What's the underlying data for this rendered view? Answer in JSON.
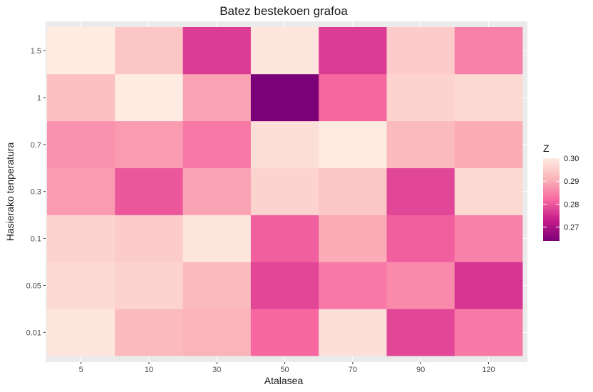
{
  "chart_data": {
    "type": "heatmap",
    "title": "Batez bestekoen grafoa",
    "xlabel": "Atalasea",
    "ylabel": "Hasierako tenperatura",
    "x_categories": [
      "5",
      "10",
      "30",
      "50",
      "70",
      "90",
      "120"
    ],
    "y_categories": [
      "0.01",
      "0.05",
      "0.1",
      "0.3",
      "0.7",
      "1",
      "1.5"
    ],
    "values": [
      [
        0.299,
        0.292,
        0.291,
        0.282,
        0.298,
        0.278,
        0.284
      ],
      [
        0.297,
        0.296,
        0.292,
        0.278,
        0.284,
        0.286,
        0.276
      ],
      [
        0.296,
        0.295,
        0.299,
        0.281,
        0.29,
        0.281,
        0.285
      ],
      [
        0.288,
        0.28,
        0.289,
        0.296,
        0.294,
        0.278,
        0.297
      ],
      [
        0.287,
        0.288,
        0.284,
        0.298,
        0.3,
        0.292,
        0.29
      ],
      [
        0.293,
        0.3,
        0.289,
        0.264,
        0.282,
        0.296,
        0.297
      ],
      [
        0.3,
        0.294,
        0.277,
        0.299,
        0.277,
        0.295,
        0.285
      ]
    ],
    "zlim": [
      0.264,
      0.3
    ],
    "legend": {
      "title": "Z",
      "position": "right",
      "ticks": [
        0.3,
        0.29,
        0.28,
        0.27
      ],
      "tick_labels": [
        "0.30",
        "0.29",
        "0.28",
        "0.27"
      ]
    },
    "colors": {
      "low": "#7A0177",
      "mid1": "#C51B8A",
      "mid2": "#F768A1",
      "mid3": "#FBB4B9",
      "high": "#FEEBE2",
      "panel_background": "#EBEBEB",
      "grid": "#FFFFFF"
    },
    "grid": true
  }
}
